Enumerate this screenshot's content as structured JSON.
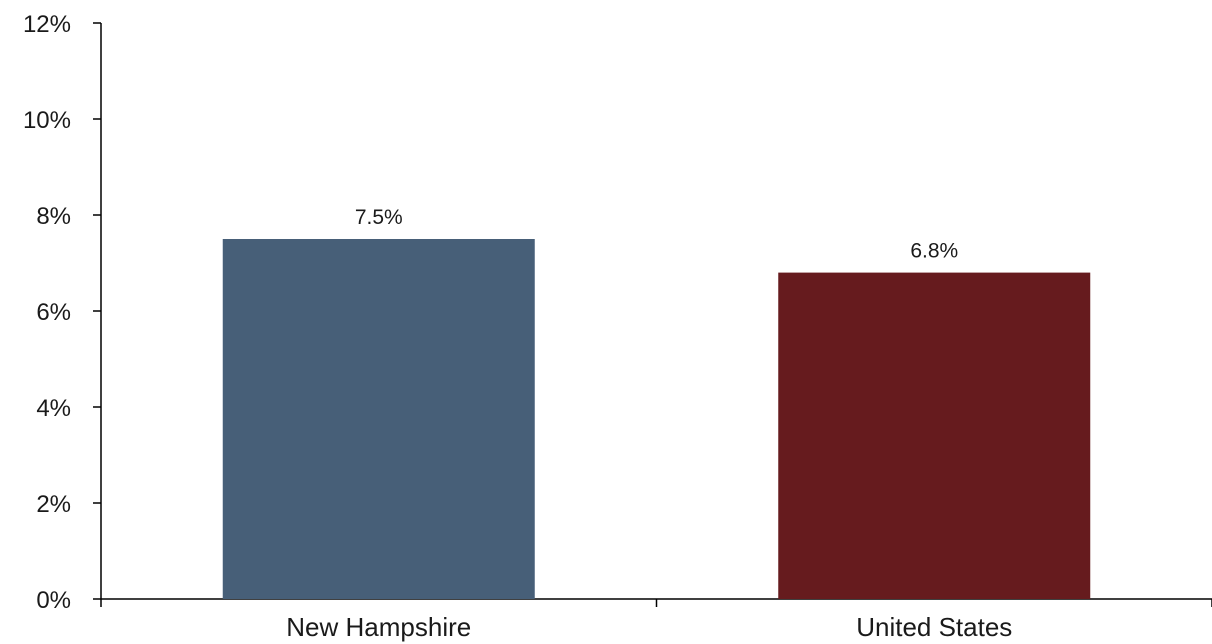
{
  "chart_data": {
    "type": "bar",
    "categories": [
      "New Hampshire",
      "United States"
    ],
    "values": [
      7.5,
      6.8
    ],
    "data_labels": [
      "7.5%",
      "6.8%"
    ],
    "colors": [
      "#475f78",
      "#661b1e"
    ],
    "y_ticks": [
      0,
      2,
      4,
      6,
      8,
      10,
      12
    ],
    "y_tick_labels": [
      "0%",
      "2%",
      "4%",
      "6%",
      "8%",
      "10%",
      "12%"
    ],
    "ylim": [
      0,
      12
    ],
    "title": "",
    "xlabel": "",
    "ylabel": "",
    "grid": false,
    "legend": "none"
  }
}
